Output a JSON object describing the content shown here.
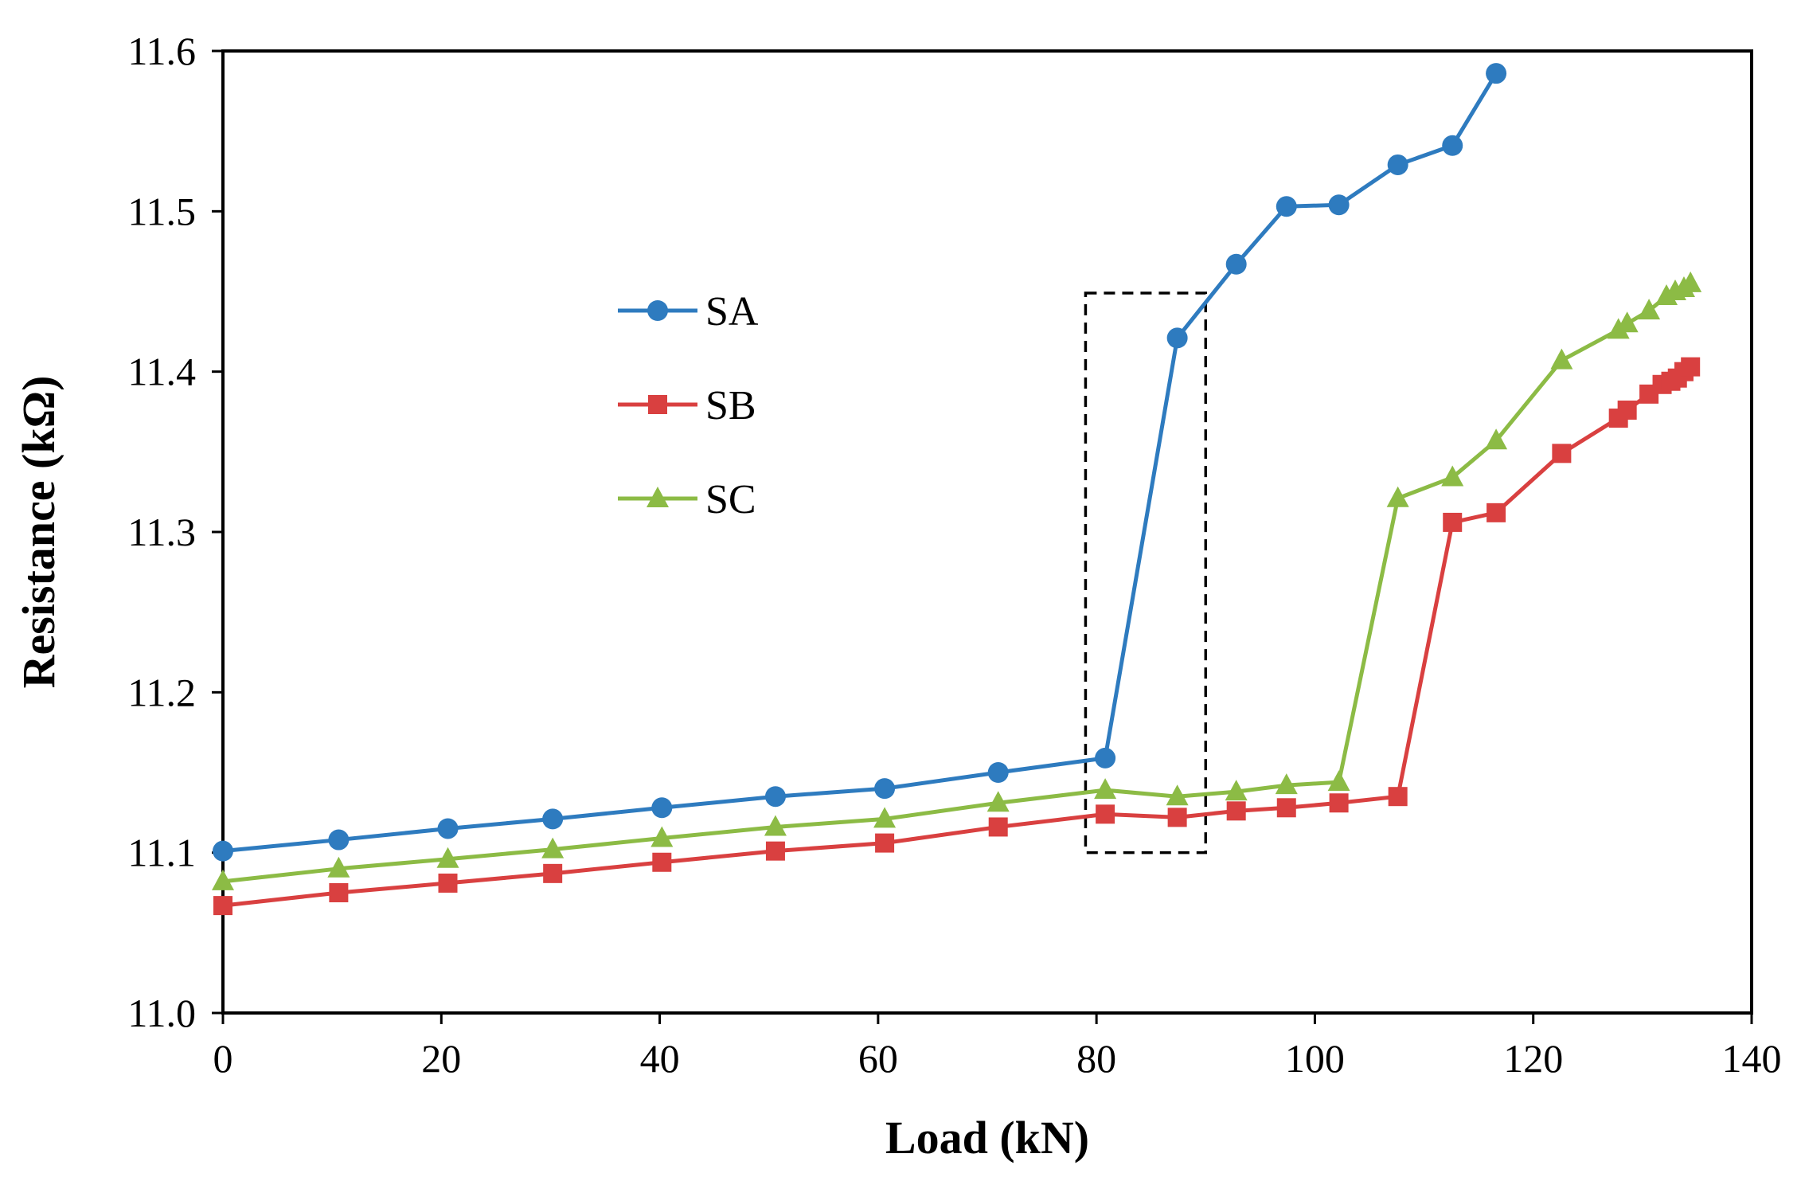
{
  "chart_data": {
    "type": "line",
    "title": "",
    "xlabel": "Load (kN)",
    "ylabel": "Resistance (kΩ)",
    "xlim": [
      0,
      140
    ],
    "ylim": [
      11.0,
      11.6
    ],
    "xticks": [
      0,
      20,
      40,
      60,
      80,
      100,
      120,
      140
    ],
    "yticks": [
      11.0,
      11.1,
      11.2,
      11.3,
      11.4,
      11.5,
      11.6
    ],
    "xtick_labels": [
      "0",
      "20",
      "40",
      "60",
      "80",
      "100",
      "120",
      "140"
    ],
    "ytick_labels": [
      "11.0",
      "11.1",
      "11.2",
      "11.3",
      "11.4",
      "11.5",
      "11.6"
    ],
    "grid": false,
    "legend_position": "upper-left-center",
    "annotation": "dashed rectangle around 79–90 kN, 11.10–11.45 kΩ",
    "annotation_box": {
      "x": [
        79,
        90
      ],
      "y": [
        11.1,
        11.449
      ]
    },
    "series": [
      {
        "name": "SA",
        "color": "#2e7bbf",
        "marker": "circle",
        "x": [
          0,
          10.6,
          20.6,
          30.2,
          40.2,
          50.6,
          60.6,
          71.0,
          80.8,
          87.4,
          92.8,
          97.4,
          102.2,
          107.6,
          112.6,
          116.6
        ],
        "y": [
          11.101,
          11.108,
          11.115,
          11.121,
          11.128,
          11.135,
          11.14,
          11.15,
          11.159,
          11.421,
          11.467,
          11.503,
          11.504,
          11.529,
          11.541,
          11.586
        ]
      },
      {
        "name": "SB",
        "color": "#d94040",
        "marker": "square",
        "x": [
          0,
          10.6,
          20.6,
          30.2,
          40.2,
          50.6,
          60.6,
          71.0,
          80.8,
          87.4,
          92.8,
          97.4,
          102.2,
          107.6,
          112.6,
          116.6,
          122.6,
          127.8,
          128.6,
          130.6,
          131.8,
          132.6,
          133.2,
          133.8,
          134.4
        ],
        "y": [
          11.067,
          11.075,
          11.081,
          11.087,
          11.094,
          11.101,
          11.106,
          11.116,
          11.124,
          11.122,
          11.126,
          11.128,
          11.131,
          11.135,
          11.306,
          11.312,
          11.349,
          11.371,
          11.376,
          11.386,
          11.392,
          11.394,
          11.396,
          11.4,
          11.403
        ]
      },
      {
        "name": "SC",
        "color": "#8cbb45",
        "marker": "triangle",
        "x": [
          0,
          10.6,
          20.6,
          30.2,
          40.2,
          50.6,
          60.6,
          71.0,
          80.8,
          87.4,
          92.8,
          97.4,
          102.2,
          107.6,
          112.6,
          116.6,
          122.6,
          127.8,
          128.6,
          130.6,
          132.2,
          133.0,
          133.8,
          134.4
        ],
        "y": [
          11.082,
          11.09,
          11.096,
          11.102,
          11.109,
          11.116,
          11.121,
          11.131,
          11.139,
          11.135,
          11.138,
          11.142,
          11.144,
          11.321,
          11.334,
          11.357,
          11.407,
          11.426,
          11.43,
          11.438,
          11.447,
          11.45,
          11.452,
          11.455
        ]
      }
    ]
  }
}
